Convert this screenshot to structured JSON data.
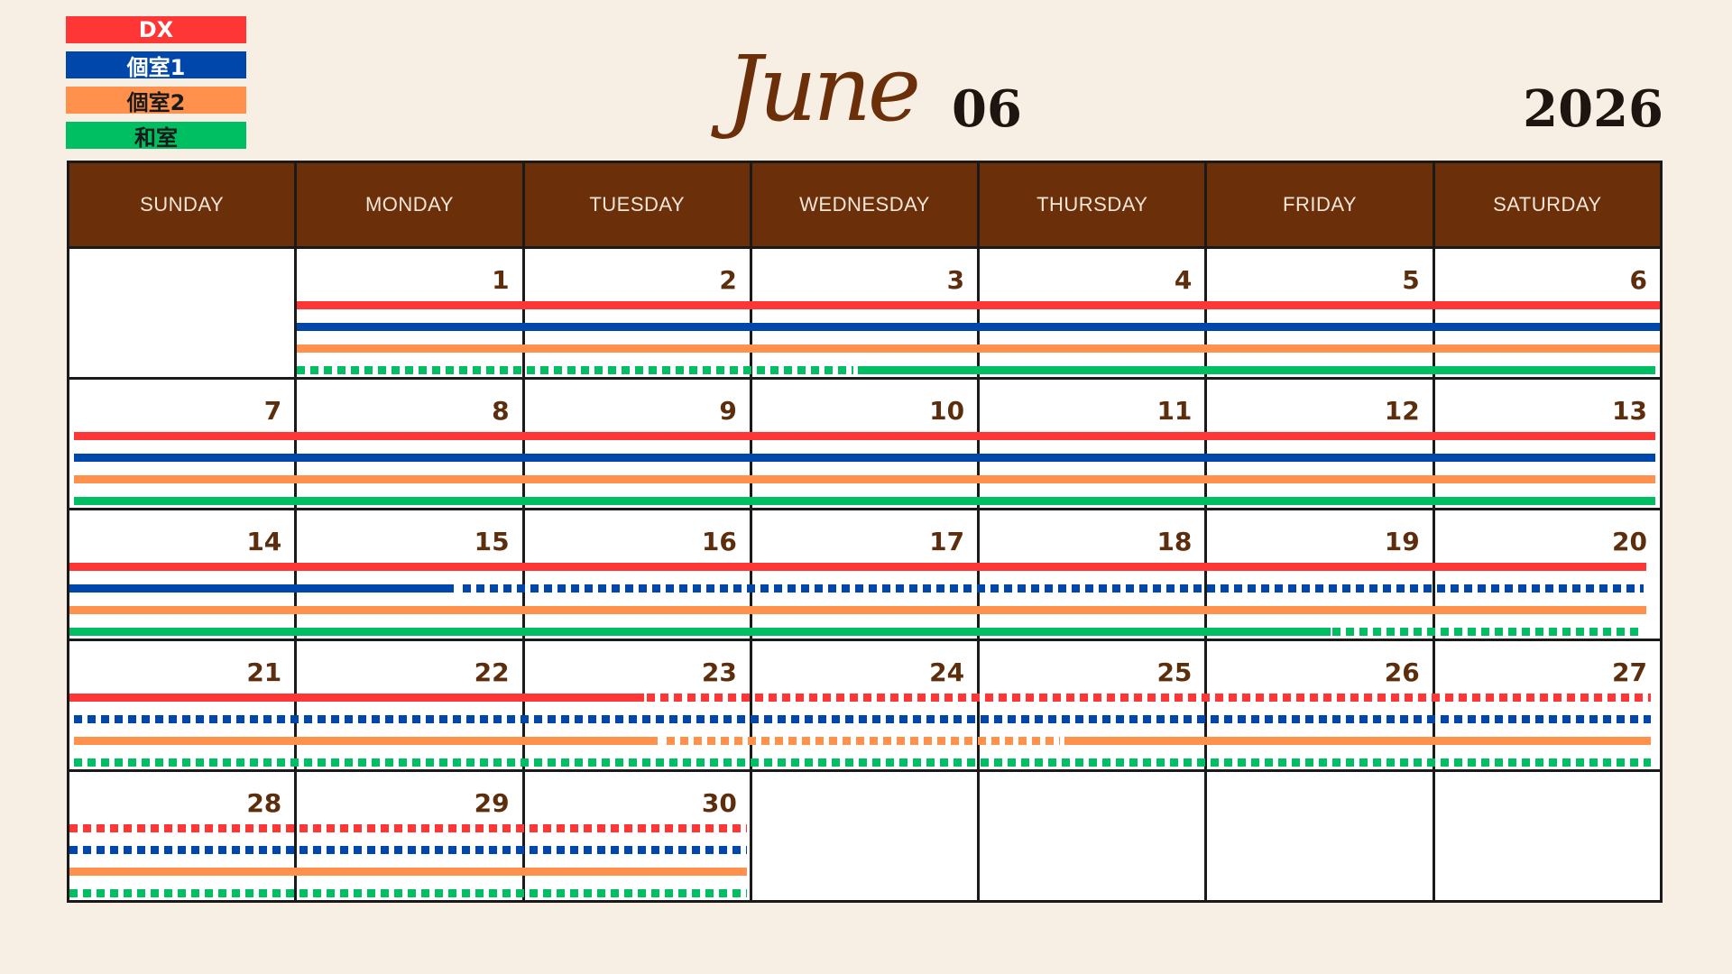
{
  "legend": [
    {
      "label": "DX",
      "color": "#fe3636",
      "text_color": "#ffffff"
    },
    {
      "label": "個室1",
      "color": "#0047ab",
      "text_color": "#ffffff"
    },
    {
      "label": "個室2",
      "color": "#ff914d",
      "text_color": "#1a1a1a"
    },
    {
      "label": "和室",
      "color": "#00bf63",
      "text_color": "#1a1a1a"
    }
  ],
  "header": {
    "month_name": "June",
    "month_number": "06",
    "year": "2026"
  },
  "weekdays": [
    "SUNDAY",
    "MONDAY",
    "TUESDAY",
    "WEDNESDAY",
    "THURSDAY",
    "FRIDAY",
    "SATURDAY"
  ],
  "weeks": [
    {
      "days": [
        null,
        "1",
        "2",
        "3",
        "4",
        "5",
        "6"
      ],
      "bars": [
        [
          {
            "from": 1,
            "to": 7,
            "style": "solid"
          }
        ],
        [
          {
            "from": 1,
            "to": 7,
            "style": "solid"
          }
        ],
        [
          {
            "from": 1,
            "to": 7,
            "style": "solid"
          }
        ],
        [
          {
            "from": 1,
            "to": 3.45,
            "style": "dotted"
          },
          {
            "from": 3.47,
            "to": 6.98,
            "style": "solid"
          }
        ]
      ]
    },
    {
      "days": [
        "7",
        "8",
        "9",
        "10",
        "11",
        "12",
        "13"
      ],
      "bars": [
        [
          {
            "from": 0.02,
            "to": 6.98,
            "style": "solid"
          }
        ],
        [
          {
            "from": 0.02,
            "to": 6.98,
            "style": "solid"
          }
        ],
        [
          {
            "from": 0.02,
            "to": 6.98,
            "style": "solid"
          }
        ],
        [
          {
            "from": 0.02,
            "to": 6.98,
            "style": "solid"
          }
        ]
      ]
    },
    {
      "days": [
        "14",
        "15",
        "16",
        "17",
        "18",
        "19",
        "20"
      ],
      "bars": [
        [
          {
            "from": 0,
            "to": 6.94,
            "style": "solid"
          }
        ],
        [
          {
            "from": 0,
            "to": 1.69,
            "style": "solid"
          },
          {
            "from": 1.73,
            "to": 6.93,
            "style": "dotted"
          }
        ],
        [
          {
            "from": 0,
            "to": 6.94,
            "style": "solid"
          }
        ],
        [
          {
            "from": 0,
            "to": 5.55,
            "style": "solid"
          },
          {
            "from": 5.56,
            "to": 6.93,
            "style": "dotted"
          }
        ]
      ]
    },
    {
      "days": [
        "21",
        "22",
        "23",
        "24",
        "25",
        "26",
        "27"
      ],
      "bars": [
        [
          {
            "from": 0,
            "to": 2.53,
            "style": "solid"
          },
          {
            "from": 2.54,
            "to": 6.96,
            "style": "dotted"
          }
        ],
        [
          {
            "from": 0.02,
            "to": 6.96,
            "style": "dotted"
          }
        ],
        [
          {
            "from": 0.02,
            "to": 2.59,
            "style": "solid"
          },
          {
            "from": 2.63,
            "to": 4.36,
            "style": "dotted"
          },
          {
            "from": 4.38,
            "to": 6.96,
            "style": "solid"
          }
        ],
        [
          {
            "from": 0.02,
            "to": 6.96,
            "style": "dotted"
          }
        ]
      ]
    },
    {
      "days": [
        "28",
        "29",
        "30",
        null,
        null,
        null,
        null
      ],
      "bars": [
        [
          {
            "from": 0,
            "to": 2.98,
            "style": "dotted"
          }
        ],
        [
          {
            "from": 0,
            "to": 2.98,
            "style": "dotted"
          }
        ],
        [
          {
            "from": 0,
            "to": 2.98,
            "style": "solid"
          }
        ],
        [
          {
            "from": 0,
            "to": 2.98,
            "style": "dotted"
          }
        ]
      ]
    }
  ]
}
